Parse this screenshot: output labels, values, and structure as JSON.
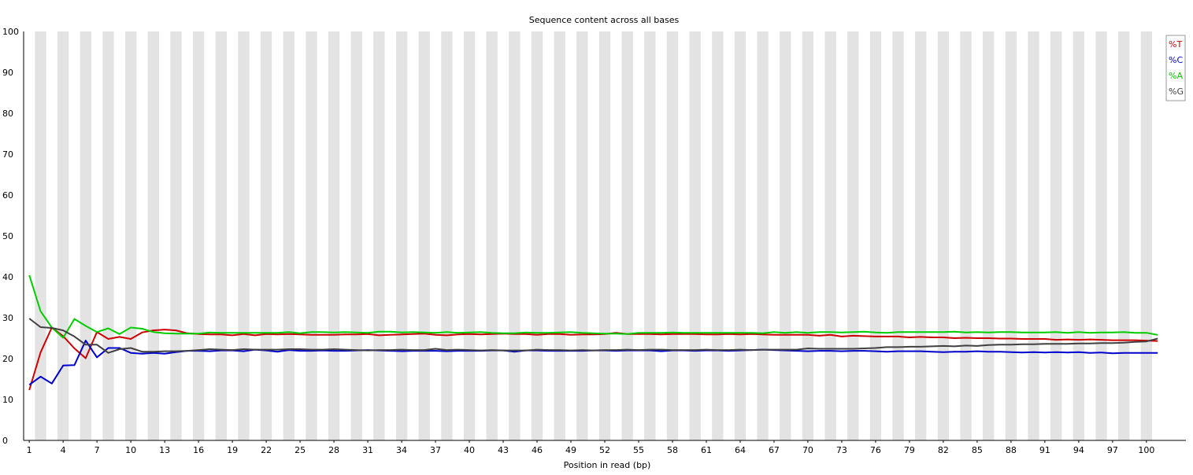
{
  "chart_data": {
    "type": "line",
    "title": "Sequence content across all bases",
    "xlabel": "Position in read (bp)",
    "ylabel": "",
    "ylim": [
      0,
      100
    ],
    "yticks": [
      0,
      10,
      20,
      30,
      40,
      50,
      60,
      70,
      80,
      90,
      100
    ],
    "x_tick_labels": [
      "1",
      "4",
      "7",
      "10",
      "13",
      "16",
      "19",
      "22",
      "25",
      "28",
      "31",
      "34",
      "37",
      "40",
      "43",
      "46",
      "49",
      "52",
      "55",
      "58",
      "61",
      "64",
      "67",
      "70",
      "73",
      "76",
      "79",
      "82",
      "85",
      "88",
      "91",
      "94",
      "97",
      "100"
    ],
    "grid": "alternating vertical bands per position",
    "legend_position": "top-right",
    "x": [
      1,
      2,
      3,
      4,
      5,
      6,
      7,
      8,
      9,
      10,
      11,
      12,
      13,
      14,
      15,
      16,
      17,
      18,
      19,
      20,
      21,
      22,
      23,
      24,
      25,
      26,
      27,
      28,
      29,
      30,
      31,
      32,
      33,
      34,
      35,
      36,
      37,
      38,
      39,
      40,
      41,
      42,
      43,
      44,
      45,
      46,
      47,
      48,
      49,
      50,
      51,
      52,
      53,
      54,
      55,
      56,
      57,
      58,
      59,
      60,
      61,
      62,
      63,
      64,
      65,
      66,
      67,
      68,
      69,
      70,
      71,
      72,
      73,
      74,
      75,
      76,
      77,
      78,
      79,
      80,
      81,
      82,
      83,
      84,
      85,
      86,
      87,
      88,
      89,
      90,
      91,
      92,
      93,
      94,
      95,
      96,
      97,
      98,
      99,
      100,
      101
    ],
    "series": [
      {
        "name": "%T",
        "color": "#cc0000",
        "values": [
          12.3,
          21.5,
          27.6,
          25.5,
          22.5,
          20.1,
          26.5,
          24.8,
          25.3,
          24.8,
          26.4,
          26.9,
          27.1,
          26.9,
          26.2,
          26.0,
          25.9,
          25.9,
          25.7,
          26.0,
          25.7,
          26.0,
          25.9,
          26.0,
          25.9,
          25.8,
          25.8,
          25.8,
          25.9,
          25.9,
          26.0,
          25.7,
          25.8,
          25.9,
          26.0,
          26.1,
          25.8,
          25.7,
          25.9,
          26.0,
          25.9,
          26.0,
          26.1,
          26.0,
          26.0,
          25.8,
          26.0,
          26.0,
          25.8,
          25.9,
          25.9,
          26.0,
          26.3,
          26.0,
          26.0,
          26.0,
          25.9,
          26.0,
          26.0,
          26.0,
          25.9,
          25.9,
          26.0,
          25.9,
          26.0,
          25.9,
          25.8,
          25.8,
          25.8,
          25.8,
          25.6,
          25.8,
          25.4,
          25.6,
          25.5,
          25.4,
          25.4,
          25.4,
          25.2,
          25.3,
          25.2,
          25.2,
          25.0,
          25.1,
          25.0,
          25.0,
          24.9,
          24.9,
          24.8,
          24.8,
          24.8,
          24.6,
          24.7,
          24.6,
          24.7,
          24.6,
          24.5,
          24.5,
          24.5,
          24.4,
          24.3
        ]
      },
      {
        "name": "%C",
        "color": "#0000cc",
        "values": [
          13.6,
          15.6,
          13.9,
          18.3,
          18.4,
          24.4,
          20.3,
          22.6,
          22.6,
          21.4,
          21.2,
          21.4,
          21.2,
          21.6,
          21.9,
          21.9,
          21.8,
          22.0,
          22.0,
          21.8,
          22.2,
          22.0,
          21.7,
          22.1,
          21.9,
          21.9,
          22.0,
          21.9,
          21.9,
          22.0,
          22.1,
          22.0,
          21.9,
          21.8,
          21.9,
          21.9,
          21.9,
          21.8,
          21.9,
          21.9,
          21.9,
          22.0,
          22.0,
          21.7,
          22.0,
          22.0,
          21.9,
          21.9,
          21.9,
          21.9,
          22.0,
          22.0,
          21.9,
          22.0,
          22.0,
          22.0,
          21.8,
          22.0,
          22.0,
          21.9,
          22.0,
          22.0,
          21.9,
          22.0,
          22.1,
          22.2,
          22.1,
          22.0,
          21.9,
          21.8,
          21.9,
          21.9,
          21.8,
          21.9,
          21.9,
          21.8,
          21.7,
          21.8,
          21.8,
          21.8,
          21.7,
          21.6,
          21.7,
          21.7,
          21.8,
          21.7,
          21.7,
          21.6,
          21.5,
          21.6,
          21.5,
          21.6,
          21.5,
          21.6,
          21.4,
          21.5,
          21.3,
          21.4,
          21.4,
          21.4,
          21.4
        ]
      },
      {
        "name": "%A",
        "color": "#00cc00",
        "values": [
          40.4,
          31.6,
          27.6,
          25.1,
          29.7,
          28.0,
          26.5,
          27.4,
          26.0,
          27.6,
          27.3,
          26.5,
          26.2,
          26.1,
          26.1,
          26.1,
          26.4,
          26.3,
          26.3,
          26.3,
          26.3,
          26.3,
          26.3,
          26.5,
          26.2,
          26.5,
          26.5,
          26.4,
          26.5,
          26.4,
          26.3,
          26.6,
          26.6,
          26.4,
          26.5,
          26.4,
          26.3,
          26.5,
          26.3,
          26.4,
          26.5,
          26.3,
          26.2,
          26.2,
          26.4,
          26.3,
          26.3,
          26.4,
          26.5,
          26.3,
          26.2,
          26.1,
          26.1,
          26.0,
          26.3,
          26.3,
          26.3,
          26.4,
          26.3,
          26.3,
          26.3,
          26.3,
          26.3,
          26.3,
          26.3,
          26.2,
          26.5,
          26.3,
          26.5,
          26.3,
          26.5,
          26.5,
          26.4,
          26.5,
          26.6,
          26.4,
          26.3,
          26.5,
          26.5,
          26.5,
          26.5,
          26.5,
          26.6,
          26.4,
          26.5,
          26.4,
          26.5,
          26.5,
          26.4,
          26.4,
          26.4,
          26.5,
          26.3,
          26.5,
          26.3,
          26.4,
          26.4,
          26.5,
          26.3,
          26.3,
          25.8
        ]
      },
      {
        "name": "%G",
        "color": "#404040",
        "values": [
          29.8,
          27.7,
          27.5,
          26.9,
          25.4,
          23.4,
          23.4,
          21.4,
          22.3,
          22.6,
          21.7,
          21.7,
          21.8,
          21.8,
          21.9,
          22.1,
          22.3,
          22.2,
          22.1,
          22.3,
          22.2,
          22.2,
          22.2,
          22.3,
          22.3,
          22.2,
          22.2,
          22.3,
          22.2,
          22.1,
          22.0,
          22.1,
          22.1,
          22.2,
          22.1,
          22.1,
          22.4,
          22.1,
          22.2,
          22.1,
          22.0,
          22.1,
          22.0,
          22.0,
          22.0,
          22.2,
          22.1,
          22.1,
          22.0,
          22.1,
          22.0,
          22.1,
          22.1,
          22.2,
          22.1,
          22.2,
          22.2,
          22.1,
          22.1,
          22.1,
          22.2,
          22.1,
          22.1,
          22.2,
          22.1,
          22.2,
          22.2,
          22.2,
          22.2,
          22.5,
          22.4,
          22.4,
          22.4,
          22.4,
          22.5,
          22.6,
          22.8,
          22.8,
          22.9,
          22.9,
          23.0,
          23.1,
          23.0,
          23.2,
          23.1,
          23.3,
          23.4,
          23.4,
          23.5,
          23.5,
          23.6,
          23.6,
          23.6,
          23.7,
          23.7,
          23.8,
          23.8,
          23.9,
          24.1,
          24.2,
          24.9
        ]
      }
    ]
  }
}
